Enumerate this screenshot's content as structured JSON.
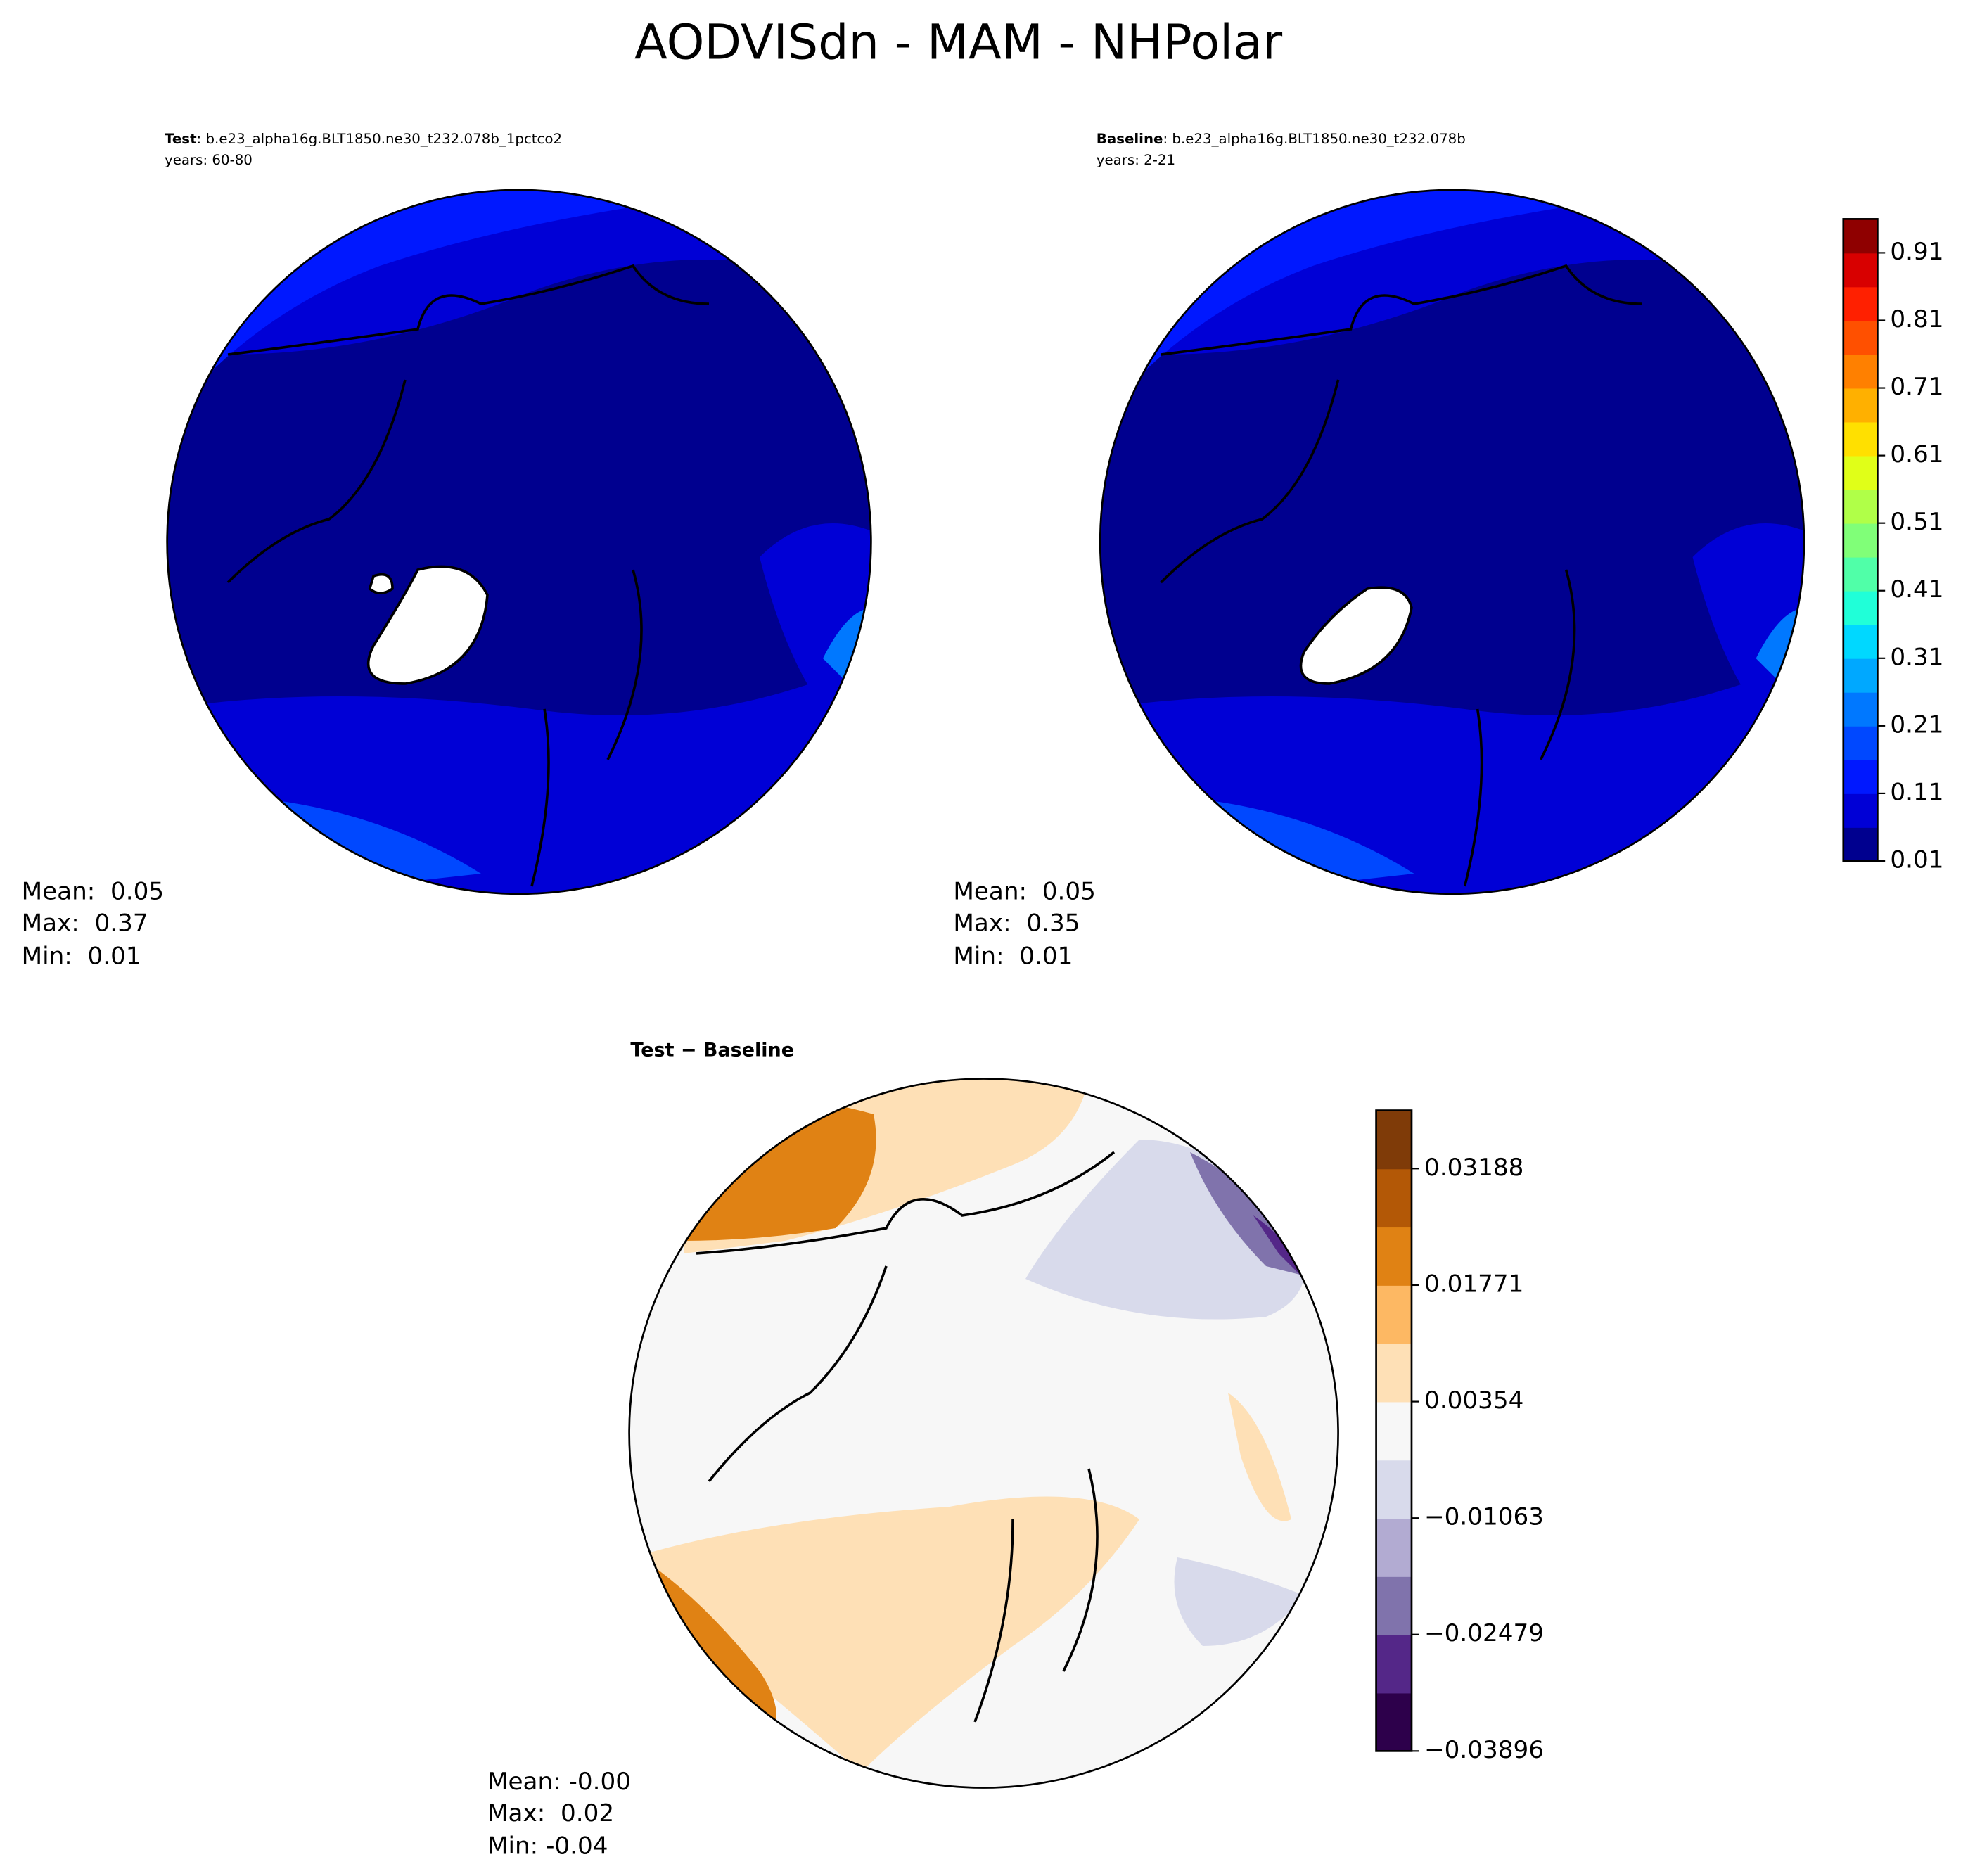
{
  "title": "AODVISdn - MAM - NHPolar",
  "panels": [
    {
      "label": "Test",
      "case": ": b.e23_alpha16g.BLT1850.ne30_t232.078b_1pctco2",
      "years": "years: 60-80",
      "stats": [
        "Mean:  0.05",
        "Max:  0.37",
        "Min:  0.01"
      ]
    },
    {
      "label": "Baseline",
      "case": ": b.e23_alpha16g.BLT1850.ne30_t232.078b",
      "years": "years: 2-21",
      "stats": [
        "Mean:  0.05",
        "Max:  0.35",
        "Min:  0.01"
      ]
    },
    {
      "label": "Test − Baseline",
      "stats": [
        "Mean: -0.00",
        "Max:  0.02",
        "Min: -0.04"
      ]
    }
  ],
  "colorbars": [
    {
      "lim": [
        0.01,
        0.96
      ],
      "ticks": [
        0.01,
        0.11,
        0.21,
        0.31,
        0.41,
        0.51,
        0.61,
        0.71,
        0.81,
        0.91
      ],
      "colors": [
        "#00008f",
        "#0000d6",
        "#0018ff",
        "#0048ff",
        "#0078ff",
        "#00a8ff",
        "#00d8ff",
        "#20ffd8",
        "#50ffa8",
        "#80ff78",
        "#b0ff48",
        "#e0ff18",
        "#ffe000",
        "#ffb000",
        "#ff8000",
        "#ff5000",
        "#ff2000",
        "#d80000",
        "#8f0000"
      ]
    },
    {
      "lim": [
        -0.03896,
        0.03896
      ],
      "ticks": [
        {
          "value": -0.03896,
          "label": "−0.03896"
        },
        {
          "value": -0.02479,
          "label": "−0.02479"
        },
        {
          "value": -0.01063,
          "label": "−0.01063"
        },
        0.00354,
        0.01771,
        0.03188
      ],
      "colors": [
        "#2d004b",
        "#542788",
        "#8073ac",
        "#b2abd2",
        "#d8daeb",
        "#f7f7f7",
        "#fee0b6",
        "#fdb863",
        "#e08214",
        "#b35806",
        "#7f3b08"
      ]
    }
  ]
}
